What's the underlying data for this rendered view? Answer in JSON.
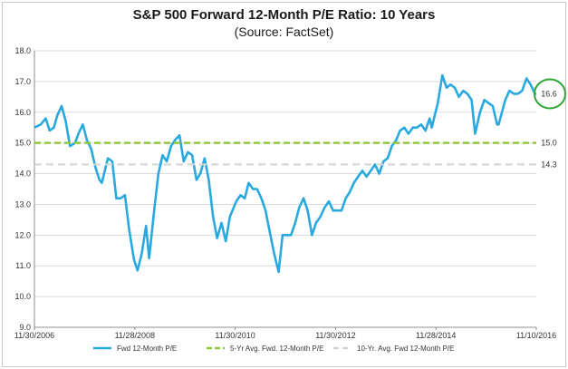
{
  "chart_data": {
    "type": "line",
    "title": "S&P 500 Forward 12-Month P/E Ratio: 10 Years",
    "subtitle": "(Source: FactSet)",
    "xlabel": "",
    "ylabel": "",
    "ylim": [
      9.0,
      18.0
    ],
    "y_ticks": [
      "9.0",
      "10.0",
      "11.0",
      "12.0",
      "13.0",
      "14.0",
      "15.0",
      "16.0",
      "17.0",
      "18.0"
    ],
    "x_tick_labels": [
      "11/30/2006",
      "11/28/2008",
      "11/30/2010",
      "11/30/2012",
      "11/28/2014",
      "11/10/2016"
    ],
    "x_range": [
      "2006-11-30",
      "2016-11-10"
    ],
    "grid": "horizontal",
    "legend_position": "bottom",
    "series": [
      {
        "name": "Fwd 12-Month P/E",
        "color": "#29a9df",
        "style": "solid",
        "x": [
          "2006-11-30",
          "2007-01-15",
          "2007-02-20",
          "2007-03-20",
          "2007-04-20",
          "2007-05-15",
          "2007-06-15",
          "2007-07-15",
          "2007-07-30",
          "2007-08-15",
          "2007-09-20",
          "2007-10-15",
          "2007-11-15",
          "2007-12-15",
          "2008-01-15",
          "2008-02-15",
          "2008-03-15",
          "2008-04-01",
          "2008-05-15",
          "2008-06-15",
          "2008-07-15",
          "2008-08-15",
          "2008-09-15",
          "2008-10-15",
          "2008-11-20",
          "2008-12-15",
          "2009-01-15",
          "2009-02-15",
          "2009-03-09",
          "2009-04-15",
          "2009-05-15",
          "2009-06-15",
          "2009-07-15",
          "2009-08-15",
          "2009-09-15",
          "2009-10-15",
          "2009-11-15",
          "2009-12-15",
          "2010-01-15",
          "2010-02-15",
          "2010-03-15",
          "2010-04-15",
          "2010-05-15",
          "2010-06-15",
          "2010-07-15",
          "2010-08-15",
          "2010-09-15",
          "2010-10-15",
          "2010-11-30",
          "2010-12-31",
          "2011-01-31",
          "2011-02-28",
          "2011-03-31",
          "2011-04-30",
          "2011-05-31",
          "2011-06-30",
          "2011-07-31",
          "2011-08-31",
          "2011-10-03",
          "2011-10-31",
          "2011-11-30",
          "2011-12-31",
          "2012-01-31",
          "2012-02-29",
          "2012-03-31",
          "2012-04-30",
          "2012-05-31",
          "2012-06-30",
          "2012-07-31",
          "2012-08-31",
          "2012-09-30",
          "2012-10-31",
          "2012-11-30",
          "2012-12-31",
          "2013-01-31",
          "2013-02-28",
          "2013-03-31",
          "2013-04-30",
          "2013-05-31",
          "2013-06-30",
          "2013-07-31",
          "2013-08-31",
          "2013-09-30",
          "2013-10-31",
          "2013-11-30",
          "2013-12-31",
          "2014-01-31",
          "2014-02-28",
          "2014-03-31",
          "2014-04-30",
          "2014-05-31",
          "2014-06-30",
          "2014-07-31",
          "2014-08-31",
          "2014-09-30",
          "2014-10-15",
          "2014-11-28",
          "2014-12-31",
          "2015-01-31",
          "2015-02-28",
          "2015-03-31",
          "2015-04-30",
          "2015-05-31",
          "2015-06-30",
          "2015-07-31",
          "2015-08-25",
          "2015-09-30",
          "2015-10-31",
          "2015-11-30",
          "2015-12-31",
          "2016-01-31",
          "2016-02-11",
          "2016-03-31",
          "2016-04-30",
          "2016-05-31",
          "2016-06-30",
          "2016-07-31",
          "2016-08-31",
          "2016-09-30",
          "2016-10-31",
          "2016-11-10"
        ],
        "values": [
          15.5,
          15.6,
          15.8,
          15.4,
          15.5,
          15.9,
          16.2,
          15.7,
          15.3,
          14.9,
          15.0,
          15.3,
          15.6,
          15.1,
          14.8,
          14.2,
          13.8,
          13.7,
          14.5,
          14.4,
          13.2,
          13.2,
          13.3,
          12.2,
          11.2,
          10.85,
          11.4,
          12.3,
          11.25,
          12.8,
          14.0,
          14.6,
          14.4,
          14.9,
          15.1,
          15.25,
          14.4,
          14.7,
          14.6,
          13.8,
          14.0,
          14.5,
          13.8,
          12.6,
          11.9,
          12.4,
          11.8,
          12.6,
          13.1,
          13.3,
          13.2,
          13.7,
          13.5,
          13.5,
          13.2,
          12.8,
          12.1,
          11.4,
          10.8,
          12.0,
          12.0,
          12.0,
          12.4,
          12.9,
          13.2,
          12.8,
          12.0,
          12.4,
          12.6,
          12.9,
          13.1,
          12.8,
          12.8,
          12.8,
          13.2,
          13.4,
          13.7,
          13.9,
          14.1,
          13.9,
          14.1,
          14.3,
          14.0,
          14.4,
          14.5,
          14.9,
          15.1,
          15.4,
          15.5,
          15.3,
          15.5,
          15.5,
          15.6,
          15.4,
          15.8,
          15.5,
          16.3,
          17.2,
          16.8,
          16.9,
          16.8,
          16.5,
          16.7,
          16.6,
          16.4,
          15.3,
          16.0,
          16.4,
          16.3,
          16.2,
          15.6,
          15.6,
          16.4,
          16.7,
          16.6,
          16.6,
          16.7,
          17.1,
          16.9,
          16.6,
          16.6
        ]
      },
      {
        "name": "5-Yr Avg. Fwd. 12-Month P/E",
        "color": "#92c83e",
        "style": "dashed",
        "constant": 15.0
      },
      {
        "name": "10-Yr. Avg. Fwd 12-Month P/E",
        "color": "#d4d4d4",
        "style": "dashed",
        "constant": 14.3
      }
    ],
    "annotations": [
      {
        "text": "16.6",
        "series": "Fwd 12-Month P/E",
        "circled": true,
        "circle_color": "#2fa836"
      },
      {
        "text": "15.0",
        "series": "5-Yr Avg. Fwd. 12-Month P/E"
      },
      {
        "text": "14.3",
        "series": "10-Yr. Avg. Fwd 12-Month P/E"
      }
    ]
  }
}
